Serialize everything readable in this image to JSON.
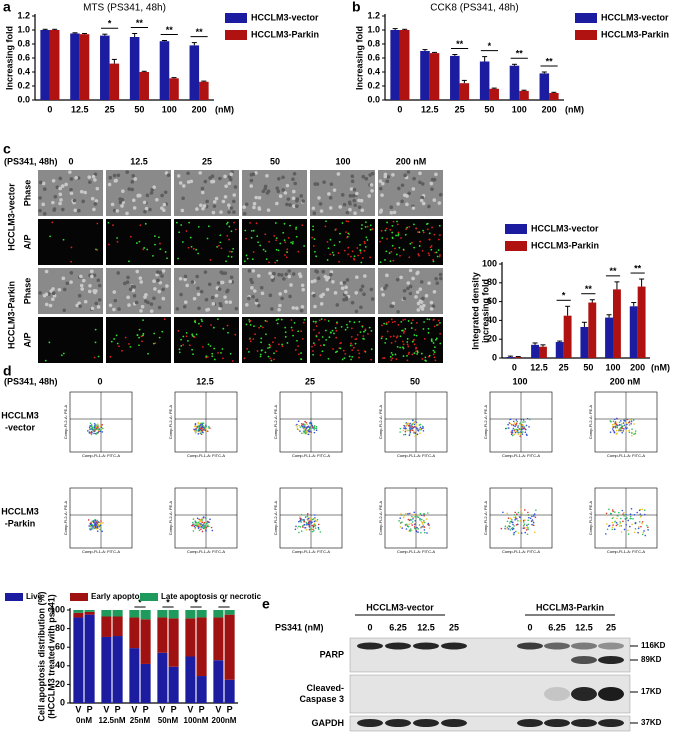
{
  "panel_labels": [
    "a",
    "b",
    "c",
    "d",
    "e"
  ],
  "chart_data": [
    {
      "type": "bar",
      "title": "MTS (PS341, 48h)",
      "y_label": [
        "Increasing fold"
      ],
      "categories": [
        "0",
        "12.5",
        "25",
        "50",
        "100",
        "200"
      ],
      "x_unit": "(nM)",
      "series": [
        {
          "name": "HCCLM3-vector",
          "color": "#1c1ca0",
          "values": [
            1.0,
            0.95,
            0.92,
            0.9,
            0.84,
            0.78
          ],
          "errors": [
            0.01,
            0.01,
            0.02,
            0.05,
            0.01,
            0.04
          ]
        },
        {
          "name": "HCCLM3-Parkin",
          "color": "#b01212",
          "values": [
            1.0,
            0.94,
            0.52,
            0.4,
            0.31,
            0.26
          ],
          "errors": [
            0.01,
            0.01,
            0.06,
            0.01,
            0.01,
            0.01
          ]
        }
      ],
      "significance": [
        null,
        null,
        "*",
        "**",
        "**",
        "**"
      ],
      "ylim": [
        0,
        1.2
      ],
      "yticks": [
        {
          "value": 0,
          "label": "0.0"
        },
        0.2,
        0.4,
        0.6,
        0.8,
        {
          "value": 1,
          "label": "1.0"
        },
        1.2
      ]
    },
    {
      "type": "bar",
      "title": "CCK8 (PS341, 48h)",
      "y_label": [
        "Increasing fold"
      ],
      "categories": [
        "0",
        "12.5",
        "25",
        "50",
        "100",
        "200"
      ],
      "x_unit": "(nM)",
      "series": [
        {
          "name": "HCCLM3-vector",
          "color": "#1c1ca0",
          "values": [
            1.0,
            0.7,
            0.63,
            0.55,
            0.49,
            0.38
          ],
          "errors": [
            0.02,
            0.02,
            0.02,
            0.07,
            0.02,
            0.02
          ]
        },
        {
          "name": "HCCLM3-Parkin",
          "color": "#b01212",
          "values": [
            1.0,
            0.67,
            0.24,
            0.16,
            0.13,
            0.1
          ],
          "errors": [
            0.01,
            0.01,
            0.04,
            0.01,
            0.01,
            0.01
          ]
        }
      ],
      "significance": [
        null,
        null,
        "**",
        "*",
        "**",
        "**"
      ],
      "ylim": [
        0,
        1.2
      ],
      "yticks": [
        {
          "value": 0,
          "label": "0.0"
        },
        0.2,
        0.4,
        0.6,
        0.8,
        {
          "value": 1,
          "label": "1.0"
        },
        1.2
      ]
    },
    {
      "type": "bar",
      "y_label": [
        "Integrated density",
        "increasing fold"
      ],
      "categories": [
        "0",
        "12.5",
        "25",
        "50",
        "100",
        "200"
      ],
      "x_unit": "(nM)",
      "series": [
        {
          "name": "HCCLM3-vector",
          "color": "#1c1ca0",
          "values": [
            1,
            14,
            17,
            33,
            43,
            55
          ],
          "errors": [
            1,
            2,
            1,
            5,
            3,
            4
          ]
        },
        {
          "name": "HCCLM3-Parkin",
          "color": "#b01212",
          "values": [
            1,
            12,
            45,
            59,
            73,
            76
          ],
          "errors": [
            0.5,
            2,
            10,
            3,
            8,
            8
          ]
        }
      ],
      "significance": [
        null,
        null,
        "*",
        "**",
        "**",
        "**"
      ],
      "ylim": [
        0,
        100
      ],
      "yticks": [
        0,
        20,
        40,
        60,
        80,
        100
      ]
    },
    {
      "type": "stacked_bar",
      "y_label": [
        "Cell apoptosis distribution (%)",
        "(HCCLM3 treated with ps341)"
      ],
      "categories": [
        "V",
        "P",
        "V",
        "P",
        "V",
        "P",
        "V",
        "P",
        "V",
        "P",
        "V",
        "P"
      ],
      "groups": [
        "0nM",
        "12.5nM",
        "25nM",
        "50nM",
        "100nM",
        "200nM"
      ],
      "series": [
        {
          "name": "Live",
          "color": "#1c1ca0",
          "values": [
            92,
            95,
            71,
            72,
            59,
            42,
            54,
            39,
            50,
            29,
            46,
            25
          ]
        },
        {
          "name": "Early apoptosis",
          "color": "#a01212",
          "values": [
            5,
            3,
            22,
            21,
            33,
            48,
            38,
            52,
            41,
            63,
            46,
            70
          ]
        },
        {
          "name": "Late apoptosis or necrotic",
          "color": "#1e9a5c",
          "values": [
            3,
            2,
            7,
            7,
            8,
            10,
            8,
            9,
            9,
            8,
            8,
            5
          ]
        }
      ],
      "significance": [
        null,
        null,
        "*",
        "*",
        "*",
        "*"
      ],
      "ylim": [
        0,
        100
      ],
      "yticks": [
        0,
        20,
        40,
        60,
        80,
        100
      ]
    }
  ],
  "micrographs": {
    "condition": "(PS341, 48h)",
    "concentrations": [
      "0",
      "12.5",
      "25",
      "50",
      "100",
      "200 nM"
    ],
    "groups": [
      {
        "name": "HCCLM3-vector",
        "rows": [
          "Phase",
          "A/P"
        ]
      },
      {
        "name": "HCCLM3-Parkin",
        "rows": [
          "Phase",
          "A/P"
        ]
      }
    ]
  },
  "flow": {
    "condition": "(PS341, 48h)",
    "concentrations": [
      "0",
      "12.5",
      "25",
      "50",
      "100",
      "200 nM"
    ],
    "groups": [
      [
        "HCCLM3",
        "-vector"
      ],
      [
        "HCCLM3",
        "-Parkin"
      ]
    ],
    "x_axis": "Comp-FL1-A: FITC-A",
    "y_axis": "Comp-FL2-A: PE-A"
  },
  "western": {
    "groups": [
      "HCCLM3-vector",
      "HCCLM3-Parkin"
    ],
    "dose_label": "PS341 (nM)",
    "lanes": [
      "0",
      "6.25",
      "12.5",
      "25",
      "0",
      "6.25",
      "12.5",
      "25"
    ],
    "proteins": [
      [
        "PARP"
      ],
      [
        "Cleaved-",
        "Caspase 3"
      ],
      [
        "GAPDH"
      ]
    ],
    "markers": [
      "116KD",
      "89KD",
      "17KD",
      "37KD"
    ]
  }
}
